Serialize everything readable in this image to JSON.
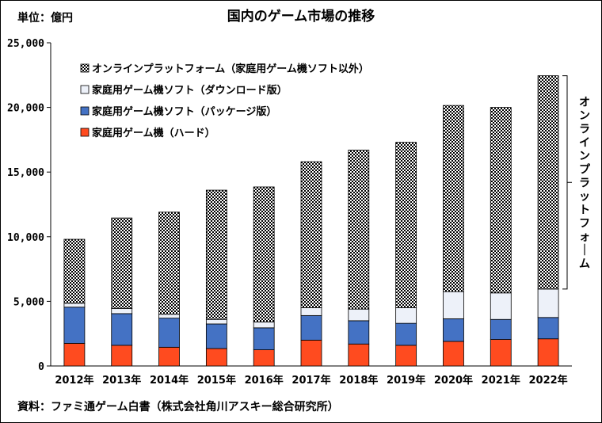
{
  "chart_data": {
    "type": "bar",
    "stacked": true,
    "title": "国内のゲーム市場の推移",
    "unit_label": "単位：億円",
    "source": "資料：ファミ通ゲーム白書（株式会社角川アスキー総合研究所）",
    "ylim": [
      0,
      25000
    ],
    "yticks": [
      "0",
      "5,000",
      "10,000",
      "15,000",
      "20,000",
      "25,000"
    ],
    "ytick_values": [
      0,
      5000,
      10000,
      15000,
      20000,
      25000
    ],
    "categories": [
      "2012年",
      "2013年",
      "2014年",
      "2015年",
      "2016年",
      "2017年",
      "2018年",
      "2019年",
      "2020年",
      "2021年",
      "2022年"
    ],
    "series": [
      {
        "name": "家庭用ゲーム機（ハード）",
        "color": "#ff4b1f",
        "pattern": "solid",
        "values": [
          1750,
          1600,
          1450,
          1350,
          1250,
          2000,
          1700,
          1600,
          1900,
          2050,
          2100
        ]
      },
      {
        "name": "家庭用ゲーム機ソフト（パッケージ版）",
        "color": "#4472c4",
        "pattern": "solid",
        "values": [
          2800,
          2450,
          2250,
          1900,
          1700,
          1900,
          1800,
          1700,
          1750,
          1550,
          1650
        ]
      },
      {
        "name": "家庭用ゲーム機ソフト（ダウンロード版）",
        "color": "#edf1f9",
        "pattern": "solid",
        "values": [
          300,
          400,
          300,
          350,
          450,
          600,
          900,
          1200,
          2100,
          2050,
          2200
        ]
      },
      {
        "name": "オンラインプラットフォーム（家庭用ゲーム機ソフト以外）",
        "color": "#000000",
        "pattern": "checker",
        "values": [
          4950,
          7000,
          7900,
          10000,
          10450,
          11300,
          12300,
          12800,
          14400,
          14350,
          16500
        ]
      }
    ],
    "legend_position": "top-left",
    "legend_order": [
      3,
      2,
      1,
      0
    ],
    "bracket_label": "オンラインプラットフォーム",
    "grid": false
  }
}
